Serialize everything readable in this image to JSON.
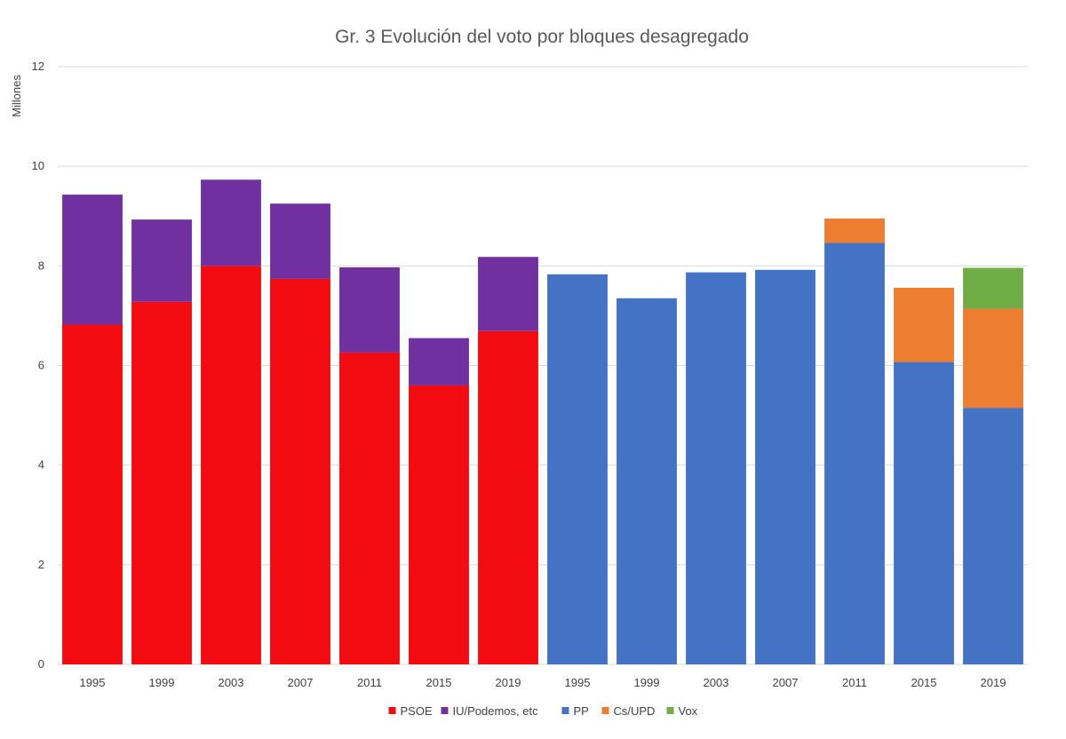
{
  "chart_data": {
    "type": "bar",
    "stacked": true,
    "title": "Gr. 3 Evolución del voto por bloques desagregado",
    "ylabel": "Millones",
    "xlabel": "",
    "ylim": [
      0,
      12
    ],
    "yticks": [
      0,
      2,
      4,
      6,
      8,
      10,
      12
    ],
    "grid": true,
    "legend_position": "bottom",
    "categories": [
      "1995",
      "1999",
      "2003",
      "2007",
      "2011",
      "2015",
      "2019",
      "1995",
      "1999",
      "2003",
      "2007",
      "2011",
      "2015",
      "2019"
    ],
    "series": [
      {
        "name": "PSOE",
        "color": "#F20C12",
        "values": [
          6.82,
          7.28,
          8.0,
          7.74,
          6.26,
          5.6,
          6.69,
          0,
          0,
          0,
          0,
          0,
          0,
          0
        ]
      },
      {
        "name": "IU/Podemos, etc",
        "color": "#7030A0",
        "values": [
          2.61,
          1.65,
          1.73,
          1.51,
          1.71,
          0.95,
          1.49,
          0,
          0,
          0,
          0,
          0,
          0,
          0
        ]
      },
      {
        "name": "PP",
        "color": "#4472C4",
        "values": [
          0,
          0,
          0,
          0,
          0,
          0,
          0,
          7.83,
          7.35,
          7.87,
          7.92,
          8.46,
          6.07,
          5.15
        ]
      },
      {
        "name": "Cs/UPD",
        "color": "#ED7D31",
        "values": [
          0,
          0,
          0,
          0,
          0,
          0,
          0,
          0,
          0,
          0,
          0,
          0.49,
          1.49,
          1.99
        ]
      },
      {
        "name": "Vox",
        "color": "#70AD47",
        "values": [
          0,
          0,
          0,
          0,
          0,
          0,
          0,
          0,
          0,
          0,
          0,
          0,
          0,
          0.82
        ]
      }
    ]
  }
}
